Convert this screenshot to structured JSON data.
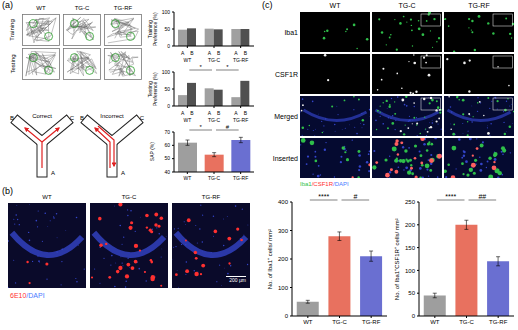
{
  "figure": {
    "a": {
      "label": "(a)",
      "columns": [
        "WT",
        "TG-C",
        "TG-RF"
      ],
      "rows": [
        "Training",
        "Testing"
      ],
      "maze": [
        {
          "title": "Correct",
          "arms": [
            "A",
            "B",
            "C"
          ]
        },
        {
          "title": "Incorrect",
          "arms": [
            "A",
            "B",
            "C"
          ]
        }
      ]
    },
    "b": {
      "label": "(b)",
      "columns": [
        "WT",
        "TG-C",
        "TG-RF"
      ],
      "stain": [
        {
          "text": "6E10",
          "color": "#ff3030"
        },
        {
          "text": "/DAPI",
          "color": "#4a7bff"
        }
      ],
      "scale_bar": "200 µm"
    },
    "c": {
      "label": "(c)",
      "columns": [
        "WT",
        "TG-C",
        "TG-RF"
      ],
      "rows": [
        "Iba1",
        "CSF1R",
        "Merged",
        "Inserted"
      ],
      "stain": [
        {
          "text": "Iba1",
          "color": "#2fbf4a"
        },
        {
          "text": "/CSF1R",
          "color": "#ff3030"
        },
        {
          "text": "/DAPI",
          "color": "#4a7bff"
        }
      ]
    }
  },
  "chart_data": [
    {
      "type": "bar",
      "y_label": "Training Preference (%)",
      "categories": [
        "WT",
        "TG-C",
        "TG-RF"
      ],
      "series": [
        {
          "name": "A",
          "color": "#a0a0a0",
          "values": [
            48,
            51,
            50
          ]
        },
        {
          "name": "B",
          "color": "#505050",
          "values": [
            52,
            49,
            50
          ]
        }
      ],
      "ylim": [
        0,
        100
      ],
      "yticks": [
        0,
        50,
        100
      ]
    },
    {
      "type": "bar",
      "y_label": "Testing Preference (%)",
      "categories": [
        "WT",
        "TG-C",
        "TG-RF"
      ],
      "series": [
        {
          "name": "A",
          "color": "#a0a0a0",
          "values": [
            32,
            52,
            26
          ]
        },
        {
          "name": "B",
          "color": "#505050",
          "values": [
            68,
            48,
            74
          ]
        }
      ],
      "ylim": [
        0,
        100
      ],
      "yticks": [
        0,
        50,
        100
      ],
      "annotations": [
        {
          "text": "*",
          "from": "WT",
          "to": "TG-C"
        },
        {
          "text": "*",
          "from": "TG-C",
          "to": "TG-RF"
        }
      ]
    },
    {
      "type": "bar",
      "y_label": "SAP (%)",
      "categories": [
        "WT",
        "TG-C",
        "TG-RF"
      ],
      "values": [
        62,
        53,
        64
      ],
      "errors": [
        2,
        1.5,
        2
      ],
      "colors": [
        "#9e9e9e",
        "#e8715f",
        "#6a6fd1"
      ],
      "ylim": [
        40,
        70
      ],
      "yticks": [
        40,
        50,
        60,
        70
      ],
      "annotations": [
        {
          "text": "*",
          "from": "WT",
          "to": "TG-C"
        },
        {
          "text": "#",
          "from": "TG-C",
          "to": "TG-RF"
        }
      ]
    },
    {
      "type": "bar",
      "y_label": "No. of Iba1⁺ cells/ mm²",
      "categories": [
        "WT",
        "TG-C",
        "TG-RF"
      ],
      "values": [
        50,
        280,
        210
      ],
      "errors": [
        5,
        15,
        18
      ],
      "colors": [
        "#9e9e9e",
        "#e8715f",
        "#6a6fd1"
      ],
      "ylim": [
        0,
        400
      ],
      "yticks": [
        0,
        100,
        200,
        300,
        400
      ],
      "annotations": [
        {
          "text": "****",
          "from": "WT",
          "to": "TG-C"
        },
        {
          "text": "#",
          "from": "TG-C",
          "to": "TG-RF"
        }
      ]
    },
    {
      "type": "bar",
      "y_label": "No. of Iba1⁺CSF1R⁺ cells/ mm²",
      "categories": [
        "WT",
        "TG-C",
        "TG-RF"
      ],
      "values": [
        45,
        200,
        120
      ],
      "errors": [
        5,
        10,
        10
      ],
      "colors": [
        "#9e9e9e",
        "#e8715f",
        "#6a6fd1"
      ],
      "ylim": [
        0,
        250
      ],
      "yticks": [
        0,
        50,
        100,
        150,
        200,
        250
      ],
      "annotations": [
        {
          "text": "****",
          "from": "WT",
          "to": "TG-C"
        },
        {
          "text": "##",
          "from": "TG-C",
          "to": "TG-RF"
        }
      ]
    }
  ]
}
